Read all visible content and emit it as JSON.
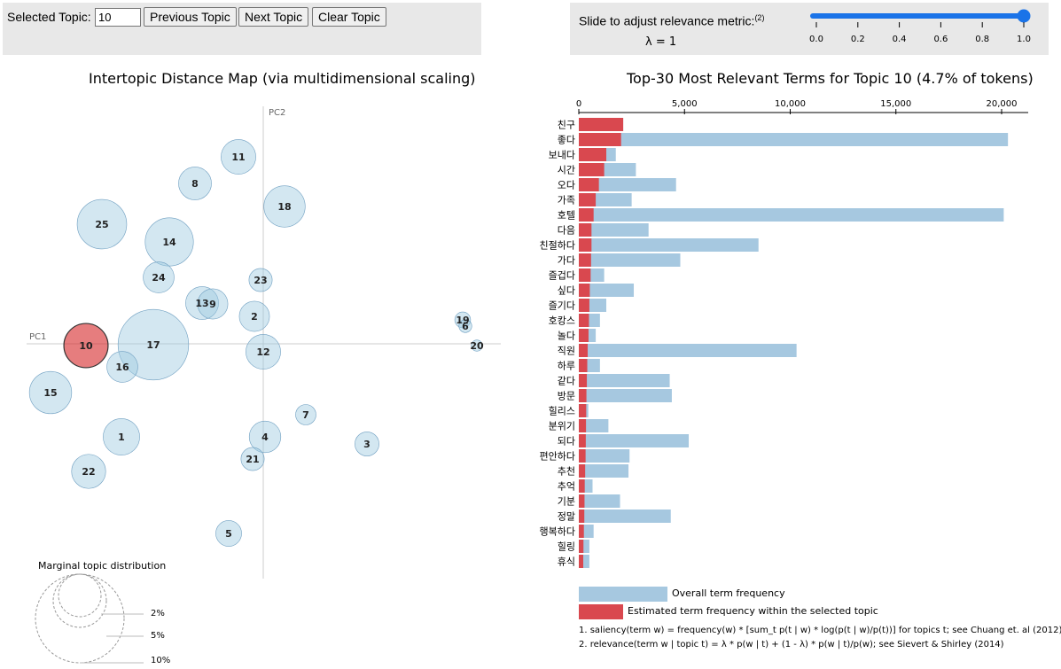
{
  "controls": {
    "selected_topic_label": "Selected Topic:",
    "selected_topic_value": "10",
    "prev_label": "Previous Topic",
    "next_label": "Next Topic",
    "clear_label": "Clear Topic",
    "lambda_label": "Slide to adjust relevance metric:",
    "lambda_footnote": "(2)",
    "lambda_value_text": "λ = 1",
    "lambda_value": 1,
    "slider_ticks": [
      "0.0",
      "0.2",
      "0.4",
      "0.6",
      "0.8",
      "1.0"
    ]
  },
  "left": {
    "title": "Intertopic Distance Map (via multidimensional scaling)",
    "pc1": "PC1",
    "pc2": "PC2",
    "marginal_title": "Marginal topic distribution",
    "marginal_labels": [
      "2%",
      "5%",
      "10%"
    ]
  },
  "right": {
    "title": "Top-30 Most Relevant Terms for Topic 10 (4.7% of tokens)",
    "legend_overall": "Overall term frequency",
    "legend_estimated": "Estimated term frequency within the selected topic",
    "note1": "1. saliency(term w) = frequency(w) * [sum_t p(t | w) * log(p(t | w)/p(t))] for topics t; see Chuang et. al (2012)",
    "note2": "2. relevance(term w | topic t) = λ * p(w | t) + (1 - λ) * p(w | t)/p(w); see Sievert & Shirley (2014)"
  },
  "colors": {
    "topic": "#9ecae1",
    "selected": "#d62728",
    "overall": "#a6c8e0",
    "estimated": "#d9484f",
    "slider": "#1a73e8"
  },
  "chart_data": [
    {
      "type": "scatter",
      "title": "Intertopic Distance Map (via multidimensional scaling)",
      "xlabel": "PC1",
      "ylabel": "PC2",
      "selected": "10",
      "points": [
        {
          "label": "1",
          "x": -0.16,
          "y": -0.105,
          "size": 3.2
        },
        {
          "label": "2",
          "x": -0.01,
          "y": 0.031,
          "size": 2.2
        },
        {
          "label": "3",
          "x": 0.117,
          "y": -0.113,
          "size": 1.4
        },
        {
          "label": "4",
          "x": 0.002,
          "y": -0.105,
          "size": 2.4
        },
        {
          "label": "5",
          "x": -0.039,
          "y": -0.214,
          "size": 1.6
        },
        {
          "label": "6",
          "x": 0.228,
          "y": 0.02,
          "size": 0.4
        },
        {
          "label": "7",
          "x": 0.048,
          "y": -0.08,
          "size": 1.0
        },
        {
          "label": "8",
          "x": -0.077,
          "y": 0.181,
          "size": 2.6
        },
        {
          "label": "9",
          "x": -0.057,
          "y": 0.045,
          "size": 2.2
        },
        {
          "label": "10",
          "x": -0.2,
          "y": -0.002,
          "size": 4.7
        },
        {
          "label": "11",
          "x": -0.028,
          "y": 0.211,
          "size": 2.9
        },
        {
          "label": "12",
          "x": 0.0,
          "y": -0.009,
          "size": 2.9
        },
        {
          "label": "13",
          "x": -0.069,
          "y": 0.046,
          "size": 2.6
        },
        {
          "label": "14",
          "x": -0.106,
          "y": 0.115,
          "size": 5.6
        },
        {
          "label": "15",
          "x": -0.24,
          "y": -0.055,
          "size": 4.3
        },
        {
          "label": "16",
          "x": -0.159,
          "y": -0.026,
          "size": 2.3
        },
        {
          "label": "17",
          "x": -0.124,
          "y": -0.001,
          "size": 12.0
        },
        {
          "label": "18",
          "x": 0.024,
          "y": 0.155,
          "size": 4.1
        },
        {
          "label": "19",
          "x": 0.225,
          "y": 0.027,
          "size": 0.6
        },
        {
          "label": "20",
          "x": 0.241,
          "y": -0.002,
          "size": 0.3
        },
        {
          "label": "21",
          "x": -0.012,
          "y": -0.13,
          "size": 1.3
        },
        {
          "label": "22",
          "x": -0.197,
          "y": -0.144,
          "size": 2.8
        },
        {
          "label": "23",
          "x": -0.003,
          "y": 0.072,
          "size": 1.3
        },
        {
          "label": "24",
          "x": -0.118,
          "y": 0.075,
          "size": 2.3
        },
        {
          "label": "25",
          "x": -0.182,
          "y": 0.135,
          "size": 5.9
        }
      ]
    },
    {
      "type": "bar",
      "title": "Top-30 Most Relevant Terms for Topic 10 (4.7% of tokens)",
      "xlim": [
        0,
        22000
      ],
      "xticks": [
        "0",
        "5,000",
        "10,000",
        "15,000",
        "20,000"
      ],
      "categories": [
        "친구",
        "좋다",
        "보내다",
        "시간",
        "오다",
        "가족",
        "호텔",
        "다음",
        "친절하다",
        "가다",
        "즐겁다",
        "싶다",
        "즐기다",
        "호캉스",
        "놀다",
        "직원",
        "하루",
        "같다",
        "방문",
        "힐리스",
        "분위기",
        "되다",
        "편안하다",
        "추천",
        "추억",
        "기분",
        "정말",
        "행복하다",
        "힐링",
        "휴식"
      ],
      "series": [
        {
          "name": "Overall term frequency",
          "values": [
            2100,
            20300,
            1750,
            2700,
            4600,
            2500,
            20100,
            3300,
            8500,
            4800,
            1200,
            2600,
            1300,
            1000,
            800,
            10300,
            1000,
            4300,
            4400,
            450,
            1400,
            5200,
            2400,
            2350,
            650,
            1950,
            4350,
            700,
            500,
            500
          ]
        },
        {
          "name": "Estimated term frequency within the selected topic",
          "values": [
            2100,
            2000,
            1300,
            1200,
            950,
            800,
            700,
            600,
            600,
            580,
            560,
            520,
            500,
            480,
            460,
            420,
            400,
            380,
            360,
            350,
            340,
            330,
            320,
            300,
            280,
            270,
            260,
            240,
            220,
            210
          ]
        }
      ]
    }
  ]
}
